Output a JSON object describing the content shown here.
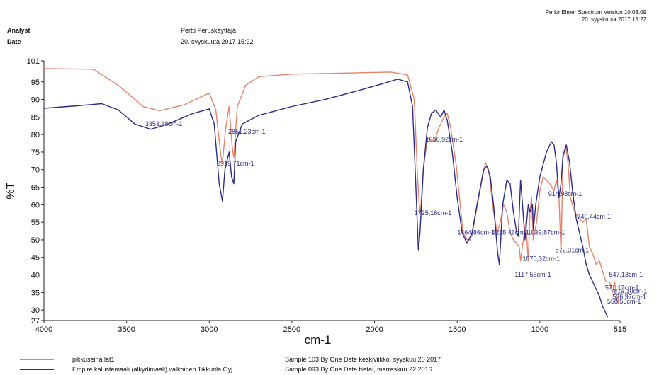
{
  "header": {
    "analyst_label": "Analyst",
    "analyst_value": "Pertti Peruskäyttäjä",
    "date_label": "Date",
    "date_value": "20. syyskuuta 2017 15:22",
    "software": "PerkinElmer Spectrum Version 10.03.09",
    "software_date": "20. syyskuuta 2017 15:22"
  },
  "chart_data": {
    "type": "line",
    "xlabel": "cm-1",
    "ylabel": "%T",
    "xlim": [
      4000,
      515
    ],
    "ylim": [
      27,
      101
    ],
    "x_ticks": [
      4000,
      3500,
      3000,
      2500,
      2000,
      1500,
      1000,
      515
    ],
    "y_ticks": [
      27,
      30,
      35,
      40,
      45,
      50,
      55,
      60,
      65,
      70,
      75,
      80,
      85,
      90,
      95,
      101
    ],
    "series": [
      {
        "name": "pikkuseinä.lat1",
        "color": "#e8826a",
        "points": [
          [
            4000,
            98.8
          ],
          [
            3700,
            98.6
          ],
          [
            3550,
            94
          ],
          [
            3400,
            88
          ],
          [
            3300,
            86.8
          ],
          [
            3150,
            88.5
          ],
          [
            3000,
            91.8
          ],
          [
            2960,
            87
          ],
          [
            2930,
            74
          ],
          [
            2920,
            72
          ],
          [
            2900,
            82
          ],
          [
            2880,
            88
          ],
          [
            2860,
            76
          ],
          [
            2851,
            73.5
          ],
          [
            2830,
            88
          ],
          [
            2780,
            94
          ],
          [
            2700,
            96.5
          ],
          [
            2500,
            97.2
          ],
          [
            2200,
            97.5
          ],
          [
            1900,
            97.8
          ],
          [
            1800,
            97
          ],
          [
            1760,
            90
          ],
          [
            1740,
            68
          ],
          [
            1730,
            60
          ],
          [
            1722,
            58
          ],
          [
            1705,
            70
          ],
          [
            1680,
            79
          ],
          [
            1640,
            78
          ],
          [
            1610,
            82
          ],
          [
            1580,
            85
          ],
          [
            1560,
            86
          ],
          [
            1540,
            82
          ],
          [
            1505,
            71
          ],
          [
            1465,
            52
          ],
          [
            1440,
            50
          ],
          [
            1420,
            50
          ],
          [
            1400,
            54
          ],
          [
            1370,
            62
          ],
          [
            1330,
            72
          ],
          [
            1310,
            70
          ],
          [
            1280,
            58
          ],
          [
            1258,
            52
          ],
          [
            1240,
            55
          ],
          [
            1220,
            60
          ],
          [
            1200,
            58
          ],
          [
            1180,
            52
          ],
          [
            1160,
            50
          ],
          [
            1140,
            49
          ],
          [
            1125,
            48
          ],
          [
            1117,
            44
          ],
          [
            1100,
            50
          ],
          [
            1085,
            55
          ],
          [
            1070,
            44
          ],
          [
            1060,
            58
          ],
          [
            1050,
            62
          ],
          [
            1040,
            50
          ],
          [
            1020,
            55
          ],
          [
            1000,
            64
          ],
          [
            980,
            68
          ],
          [
            960,
            67
          ],
          [
            940,
            66
          ],
          [
            915,
            64
          ],
          [
            900,
            67
          ],
          [
            885,
            63
          ],
          [
            872,
            46
          ],
          [
            860,
            73
          ],
          [
            845,
            77
          ],
          [
            830,
            72
          ],
          [
            815,
            62
          ],
          [
            790,
            58
          ],
          [
            760,
            56
          ],
          [
            740,
            55
          ],
          [
            720,
            56
          ],
          [
            700,
            48
          ],
          [
            680,
            46
          ],
          [
            660,
            43
          ],
          [
            640,
            44
          ],
          [
            620,
            41
          ],
          [
            600,
            38
          ],
          [
            580,
            38
          ],
          [
            571,
            37
          ],
          [
            560,
            35
          ],
          [
            547,
            38
          ],
          [
            535,
            33
          ],
          [
            527,
            32
          ],
          [
            519,
            36
          ]
        ]
      },
      {
        "name": "Empire kalustemaali (alkydimaali) valkoinen Tikkurila Oyj",
        "color": "#2b2a8e",
        "points": [
          [
            4000,
            87.5
          ],
          [
            3800,
            88.2
          ],
          [
            3650,
            88.8
          ],
          [
            3550,
            87
          ],
          [
            3450,
            83
          ],
          [
            3353,
            81.5
          ],
          [
            3250,
            83
          ],
          [
            3100,
            86
          ],
          [
            3000,
            87.3
          ],
          [
            2970,
            83
          ],
          [
            2940,
            66
          ],
          [
            2920,
            61
          ],
          [
            2905,
            70
          ],
          [
            2880,
            75
          ],
          [
            2865,
            68
          ],
          [
            2851,
            66
          ],
          [
            2840,
            78
          ],
          [
            2800,
            83
          ],
          [
            2700,
            85.5
          ],
          [
            2500,
            88
          ],
          [
            2300,
            90
          ],
          [
            2100,
            92.5
          ],
          [
            1950,
            94.5
          ],
          [
            1860,
            95.8
          ],
          [
            1800,
            95
          ],
          [
            1770,
            88
          ],
          [
            1750,
            65
          ],
          [
            1735,
            47
          ],
          [
            1725,
            52
          ],
          [
            1705,
            70
          ],
          [
            1680,
            82
          ],
          [
            1656,
            86
          ],
          [
            1630,
            87
          ],
          [
            1600,
            85
          ],
          [
            1580,
            87
          ],
          [
            1560,
            84
          ],
          [
            1530,
            75
          ],
          [
            1500,
            62
          ],
          [
            1470,
            52
          ],
          [
            1440,
            49
          ],
          [
            1410,
            52
          ],
          [
            1380,
            60
          ],
          [
            1340,
            70
          ],
          [
            1320,
            71
          ],
          [
            1300,
            68
          ],
          [
            1280,
            60
          ],
          [
            1255,
            46
          ],
          [
            1245,
            43
          ],
          [
            1225,
            60
          ],
          [
            1200,
            67
          ],
          [
            1180,
            66
          ],
          [
            1160,
            58
          ],
          [
            1140,
            52
          ],
          [
            1130,
            51
          ],
          [
            1117,
            67
          ],
          [
            1105,
            60
          ],
          [
            1090,
            50
          ],
          [
            1070,
            60
          ],
          [
            1060,
            58
          ],
          [
            1045,
            60
          ],
          [
            1039,
            53
          ],
          [
            1025,
            60
          ],
          [
            1000,
            68
          ],
          [
            960,
            75
          ],
          [
            930,
            78
          ],
          [
            914,
            77
          ],
          [
            900,
            72
          ],
          [
            885,
            62
          ],
          [
            872,
            66
          ],
          [
            860,
            74
          ],
          [
            840,
            77
          ],
          [
            820,
            72
          ],
          [
            800,
            63
          ],
          [
            780,
            56
          ],
          [
            760,
            52
          ],
          [
            740,
            48
          ],
          [
            720,
            43
          ],
          [
            700,
            40
          ],
          [
            680,
            38
          ],
          [
            660,
            36
          ],
          [
            640,
            34
          ],
          [
            620,
            31
          ],
          [
            600,
            29
          ],
          [
            590,
            28
          ]
        ]
      }
    ],
    "annotations": [
      {
        "text": "3353,18cm-1",
        "x": 3353.18,
        "y": 82.5
      },
      {
        "text": "2851,23cm-1",
        "x": 2851.23,
        "y": 80.2
      },
      {
        "text": "2919,71cm-1",
        "x": 2919.71,
        "y": 71.2
      },
      {
        "text": "1656,92cm-1",
        "x": 1656.92,
        "y": 78
      },
      {
        "text": "1725,16cm-1",
        "x": 1725.16,
        "y": 57
      },
      {
        "text": "1464,86cm-1",
        "x": 1464.86,
        "y": 51.5
      },
      {
        "text": "1255,46cm-1",
        "x": 1255.46,
        "y": 51.5
      },
      {
        "text": "1039,87cm-1",
        "x": 1039.87,
        "y": 51.5
      },
      {
        "text": "1070,32cm-1",
        "x": 1070.32,
        "y": 44
      },
      {
        "text": "1117,55cm-1",
        "x": 1117.55,
        "y": 39.5
      },
      {
        "text": "914,98cm-1",
        "x": 914.98,
        "y": 62.5
      },
      {
        "text": "740,44cm-1",
        "x": 740.44,
        "y": 56
      },
      {
        "text": "872,31cm-1",
        "x": 872.31,
        "y": 46.5
      },
      {
        "text": "547,13cm-1",
        "x": 547.13,
        "y": 39.5
      },
      {
        "text": "571,17cm-1",
        "x": 571.17,
        "y": 35.8
      },
      {
        "text": "519,10cm-1",
        "x": 519.1,
        "y": 34.8
      },
      {
        "text": "526,97cm-1",
        "x": 526.97,
        "y": 33.2
      },
      {
        "text": "558,56cm-1",
        "x": 558.56,
        "y": 31.8
      }
    ],
    "grid": false,
    "legend_position": "bottom-left"
  },
  "legend": [
    {
      "name": "pikkuseinä.lat1",
      "color": "#e8826a",
      "sample": "Sample 103 By One Date keskiviikko, syyskuu 20 2017"
    },
    {
      "name": "Empire kalustemaali (alkydimaali) valkoinen Tikkurila Oyj",
      "color": "#2b2a8e",
      "sample": "Sample 093 By One Date tiistai, marraskuu 22 2016"
    }
  ]
}
